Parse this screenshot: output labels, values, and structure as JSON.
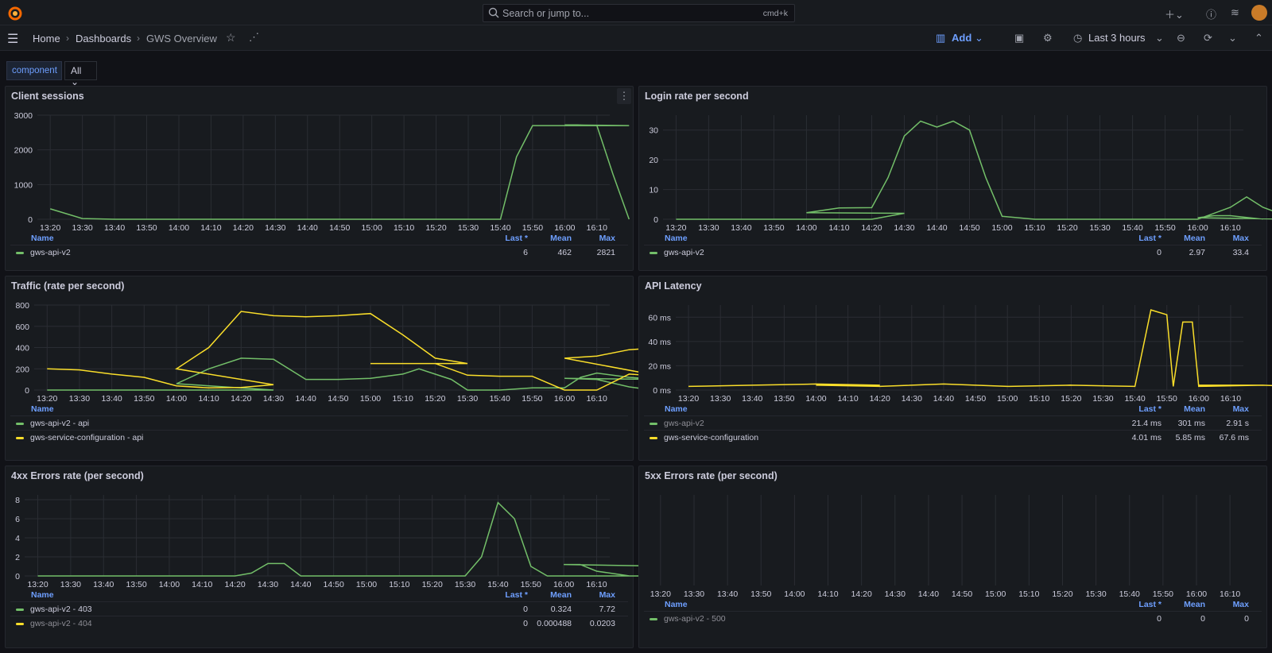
{
  "topbar": {
    "search_placeholder": "Search or jump to...",
    "search_shortcut": "cmd+k",
    "add_icon": "plus-icon"
  },
  "breadcrumb": {
    "home": "Home",
    "dashboards": "Dashboards",
    "current": "GWS Overview"
  },
  "toolbar": {
    "add_label": "Add",
    "time_range": "Last 3 hours"
  },
  "variable": {
    "label": "component",
    "value": "All"
  },
  "colors": {
    "green": "#73bf69",
    "yellow": "#fade2a",
    "accent": "#6e9fff",
    "bg": "#111217",
    "panel": "#181b1f"
  },
  "legend_headers": {
    "name": "Name",
    "last": "Last *",
    "mean": "Mean",
    "max": "Max"
  },
  "panels": [
    {
      "title": "Client sessions",
      "chart_data": {
        "type": "line",
        "title": "Client sessions",
        "x": [
          "13:20",
          "13:30",
          "13:40",
          "13:50",
          "14:00",
          "14:10",
          "14:20",
          "14:30",
          "14:40",
          "14:50",
          "15:00",
          "15:10",
          "15:20",
          "15:30",
          "15:40",
          "15:50",
          "16:00",
          "16:10"
        ],
        "y_ticks": [
          "0",
          "1000",
          "2000",
          "3000"
        ],
        "ylim": [
          0,
          3000
        ],
        "series": [
          {
            "name": "gws-api-v2",
            "color": "#73bf69",
            "points": [
              [
                13.2,
                300
              ],
              [
                13.3,
                20
              ],
              [
                13.4,
                0
              ],
              [
                13.5,
                0
              ],
              [
                13.6,
                0
              ],
              [
                15.3,
                0
              ],
              [
                15.4,
                0
              ],
              [
                15.45,
                1800
              ],
              [
                15.5,
                2700
              ],
              [
                15.6,
                2700
              ],
              [
                15.8,
                2700
              ],
              [
                16.0,
                2720
              ],
              [
                16.1,
                2700
              ],
              [
                16.15,
                1300
              ],
              [
                16.2,
                0
              ]
            ]
          }
        ]
      },
      "legend": {
        "show_stats": true,
        "rows": [
          {
            "name": "gws-api-v2",
            "color": "#73bf69",
            "last": "6",
            "mean": "462",
            "max": "2821"
          }
        ]
      }
    },
    {
      "title": "Login rate per second",
      "chart_data": {
        "type": "line",
        "title": "Login rate per second",
        "x": [
          "13:20",
          "13:30",
          "13:40",
          "13:50",
          "14:00",
          "14:10",
          "14:20",
          "14:30",
          "14:40",
          "14:50",
          "15:00",
          "15:10",
          "15:20",
          "15:30",
          "15:40",
          "15:50",
          "16:00",
          "16:10"
        ],
        "y_ticks": [
          "0",
          "10",
          "20",
          "30"
        ],
        "ylim": [
          0,
          35
        ],
        "series": [
          {
            "name": "gws-api-v2",
            "color": "#73bf69",
            "points": [
              [
                13.2,
                0
              ],
              [
                13.8,
                0
              ],
              [
                13.9,
                2
              ],
              [
                14.0,
                2.2
              ],
              [
                14.1,
                3.8
              ],
              [
                14.2,
                3.9
              ],
              [
                14.25,
                14
              ],
              [
                14.3,
                28
              ],
              [
                14.35,
                33
              ],
              [
                14.4,
                31
              ],
              [
                14.45,
                33
              ],
              [
                14.5,
                30
              ],
              [
                14.55,
                14
              ],
              [
                14.6,
                1
              ],
              [
                14.7,
                0
              ],
              [
                15.6,
                0
              ],
              [
                15.7,
                4
              ],
              [
                15.75,
                7.5
              ],
              [
                15.8,
                4
              ],
              [
                15.9,
                0
              ],
              [
                16.0,
                0.5
              ],
              [
                16.05,
                1.2
              ],
              [
                16.1,
                1.2
              ],
              [
                16.2,
                0
              ]
            ]
          }
        ]
      },
      "legend": {
        "show_stats": true,
        "rows": [
          {
            "name": "gws-api-v2",
            "color": "#73bf69",
            "last": "0",
            "mean": "2.97",
            "max": "33.4"
          }
        ]
      }
    },
    {
      "title": "Traffic (rate per second)",
      "chart_data": {
        "type": "line",
        "title": "Traffic (rate per second)",
        "x": [
          "13:20",
          "13:30",
          "13:40",
          "13:50",
          "14:00",
          "14:10",
          "14:20",
          "14:30",
          "14:40",
          "14:50",
          "15:00",
          "15:10",
          "15:20",
          "15:30",
          "15:40",
          "15:50",
          "16:00",
          "16:10"
        ],
        "y_ticks": [
          "0",
          "200",
          "400",
          "600",
          "800"
        ],
        "ylim": [
          0,
          800
        ],
        "series": [
          {
            "name": "gws-api-v2 - api",
            "color": "#73bf69",
            "points": [
              [
                13.2,
                0
              ],
              [
                13.9,
                0
              ],
              [
                14.0,
                60
              ],
              [
                14.1,
                200
              ],
              [
                14.2,
                300
              ],
              [
                14.3,
                290
              ],
              [
                14.4,
                100
              ],
              [
                14.5,
                100
              ],
              [
                14.6,
                110
              ],
              [
                14.7,
                150
              ],
              [
                14.75,
                200
              ],
              [
                14.85,
                100
              ],
              [
                14.9,
                0
              ],
              [
                15.4,
                0
              ],
              [
                15.5,
                20
              ],
              [
                15.6,
                20
              ],
              [
                15.65,
                120
              ],
              [
                15.7,
                160
              ],
              [
                15.8,
                120
              ],
              [
                15.9,
                100
              ],
              [
                16.0,
                110
              ],
              [
                16.1,
                100
              ],
              [
                16.2,
                30
              ],
              [
                16.25,
                10
              ]
            ]
          },
          {
            "name": "gws-service-configuration - api",
            "color": "#fade2a",
            "points": [
              [
                13.2,
                200
              ],
              [
                13.3,
                190
              ],
              [
                13.4,
                150
              ],
              [
                13.5,
                120
              ],
              [
                13.6,
                40
              ],
              [
                13.7,
                20
              ],
              [
                13.8,
                25
              ],
              [
                13.9,
                50
              ],
              [
                14.0,
                200
              ],
              [
                14.1,
                400
              ],
              [
                14.2,
                740
              ],
              [
                14.3,
                700
              ],
              [
                14.4,
                690
              ],
              [
                14.5,
                700
              ],
              [
                14.6,
                720
              ],
              [
                14.7,
                520
              ],
              [
                14.8,
                300
              ],
              [
                14.9,
                250
              ],
              [
                15.0,
                250
              ],
              [
                15.1,
                250
              ],
              [
                15.2,
                250
              ],
              [
                15.3,
                140
              ],
              [
                15.4,
                130
              ],
              [
                15.5,
                130
              ],
              [
                15.6,
                0
              ],
              [
                15.7,
                0
              ],
              [
                15.8,
                150
              ],
              [
                15.9,
                130
              ],
              [
                16.0,
                300
              ],
              [
                16.1,
                320
              ],
              [
                16.2,
                380
              ],
              [
                16.3,
                400
              ]
            ]
          }
        ]
      },
      "legend": {
        "show_stats": false,
        "rows": [
          {
            "name": "gws-api-v2 - api",
            "color": "#73bf69"
          },
          {
            "name": "gws-service-configuration - api",
            "color": "#fade2a"
          }
        ]
      }
    },
    {
      "title": "API Latency",
      "chart_data": {
        "type": "line",
        "title": "API Latency",
        "x": [
          "13:20",
          "13:30",
          "13:40",
          "13:50",
          "14:00",
          "14:10",
          "14:20",
          "14:30",
          "14:40",
          "14:50",
          "15:00",
          "15:10",
          "15:20",
          "15:30",
          "15:40",
          "15:50",
          "16:00",
          "16:10"
        ],
        "y_ticks": [
          "0 ms",
          "20 ms",
          "40 ms",
          "60 ms"
        ],
        "ylim": [
          0,
          70
        ],
        "series": [
          {
            "name": "gws-api-v2",
            "color": "#73bf69",
            "points": []
          },
          {
            "name": "gws-service-configuration",
            "color": "#fade2a",
            "points": [
              [
                13.2,
                3
              ],
              [
                13.4,
                4
              ],
              [
                13.6,
                5
              ],
              [
                13.8,
                4
              ],
              [
                14.0,
                4
              ],
              [
                14.2,
                3
              ],
              [
                14.4,
                5
              ],
              [
                14.6,
                3
              ],
              [
                14.8,
                4
              ],
              [
                15.0,
                3
              ],
              [
                15.2,
                4
              ],
              [
                15.4,
                3
              ],
              [
                15.45,
                66
              ],
              [
                15.5,
                62
              ],
              [
                15.52,
                3
              ],
              [
                15.55,
                56
              ],
              [
                15.58,
                56
              ],
              [
                15.6,
                3
              ],
              [
                15.8,
                4
              ],
              [
                16.0,
                4
              ],
              [
                16.2,
                4
              ],
              [
                16.3,
                3
              ]
            ]
          }
        ]
      },
      "legend": {
        "show_stats": true,
        "rows": [
          {
            "name": "gws-api-v2",
            "color": "#73bf69",
            "dim": true,
            "last": "21.4 ms",
            "mean": "301 ms",
            "max": "2.91 s"
          },
          {
            "name": "gws-service-configuration",
            "color": "#fade2a",
            "last": "4.01 ms",
            "mean": "5.85 ms",
            "max": "67.6 ms"
          }
        ]
      }
    },
    {
      "title": "4xx Errors rate (per second)",
      "chart_data": {
        "type": "line",
        "title": "4xx Errors rate (per second)",
        "x": [
          "13:20",
          "13:30",
          "13:40",
          "13:50",
          "14:00",
          "14:10",
          "14:20",
          "14:30",
          "14:40",
          "14:50",
          "15:00",
          "15:10",
          "15:20",
          "15:30",
          "15:40",
          "15:50",
          "16:00",
          "16:10"
        ],
        "y_ticks": [
          "0",
          "2",
          "4",
          "6",
          "8"
        ],
        "ylim": [
          0,
          8.5
        ],
        "series": [
          {
            "name": "gws-api-v2 - 403",
            "color": "#73bf69",
            "points": [
              [
                13.2,
                0
              ],
              [
                14.2,
                0
              ],
              [
                14.25,
                0.3
              ],
              [
                14.3,
                1.3
              ],
              [
                14.35,
                1.3
              ],
              [
                14.4,
                0
              ],
              [
                15.3,
                0
              ],
              [
                15.35,
                2
              ],
              [
                15.4,
                7.7
              ],
              [
                15.45,
                6
              ],
              [
                15.5,
                1
              ],
              [
                15.55,
                0
              ],
              [
                15.9,
                0
              ],
              [
                15.95,
                1
              ],
              [
                16.0,
                1.2
              ],
              [
                16.05,
                1.2
              ],
              [
                16.1,
                0.5
              ],
              [
                16.2,
                0
              ]
            ]
          },
          {
            "name": "gws-api-v2 - 404",
            "color": "#fade2a",
            "points": []
          }
        ]
      },
      "legend": {
        "show_stats": true,
        "rows": [
          {
            "name": "gws-api-v2 - 403",
            "color": "#73bf69",
            "last": "0",
            "mean": "0.324",
            "max": "7.72"
          },
          {
            "name": "gws-api-v2 - 404",
            "color": "#fade2a",
            "dim": true,
            "last": "0",
            "mean": "0.000488",
            "max": "0.0203"
          }
        ]
      }
    },
    {
      "title": "5xx Errors rate (per second)",
      "chart_data": {
        "type": "line",
        "title": "5xx Errors rate (per second)",
        "x": [
          "13:20",
          "13:30",
          "13:40",
          "13:50",
          "14:00",
          "14:10",
          "14:20",
          "14:30",
          "14:40",
          "14:50",
          "15:00",
          "15:10",
          "15:20",
          "15:30",
          "15:40",
          "15:50",
          "16:00",
          "16:10"
        ],
        "y_ticks": [],
        "ylim": [
          0,
          1
        ],
        "series": [
          {
            "name": "gws-api-v2 - 500",
            "color": "#73bf69",
            "points": []
          }
        ]
      },
      "legend": {
        "show_stats": true,
        "rows": [
          {
            "name": "gws-api-v2 - 500",
            "color": "#73bf69",
            "dim": true,
            "last": "0",
            "mean": "0",
            "max": "0"
          }
        ]
      }
    }
  ]
}
